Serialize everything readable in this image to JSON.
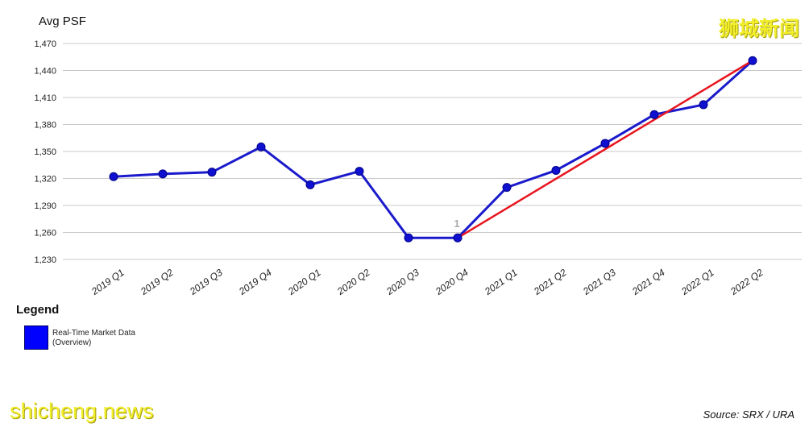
{
  "watermark_zh": "狮城新闻",
  "watermark_en": "shicheng.news",
  "source": "Source: SRX / URA",
  "legend": {
    "title": "Legend",
    "items": [
      {
        "label": "Real-Time Market Data (Overview)",
        "color": "#0000ff"
      }
    ]
  },
  "chart_data": {
    "type": "line",
    "title": "",
    "xlabel": "",
    "ylabel": "Avg PSF",
    "ylim": [
      1230,
      1470
    ],
    "yticks": [
      1230,
      1260,
      1290,
      1320,
      1350,
      1380,
      1410,
      1440,
      1470
    ],
    "ytick_labels": [
      "1,230",
      "1,260",
      "1,290",
      "1,320",
      "1,350",
      "1,380",
      "1,410",
      "1,440",
      "1,470"
    ],
    "grid": true,
    "categories": [
      "2019 Q1",
      "2019 Q2",
      "2019 Q3",
      "2019 Q4",
      "2020 Q1",
      "2020 Q2",
      "2020 Q3",
      "2020 Q4",
      "2021 Q1",
      "2021 Q2",
      "2021 Q3",
      "2021 Q4",
      "2022 Q1",
      "2022 Q2"
    ],
    "series": [
      {
        "name": "Real-Time Market Data (Overview)",
        "color": "#1a1acc",
        "values": [
          1322,
          1325,
          1327,
          1355,
          1313,
          1328,
          1254,
          1254,
          1310,
          1329,
          1359,
          1391,
          1402,
          1451
        ]
      }
    ],
    "trendline": {
      "color": "#e8141e",
      "from": {
        "x": "2020 Q4",
        "y": 1254
      },
      "to": {
        "x": "2022 Q2",
        "y": 1451
      }
    },
    "annotations": [
      {
        "x": "2020 Q4",
        "text": "1"
      }
    ]
  }
}
